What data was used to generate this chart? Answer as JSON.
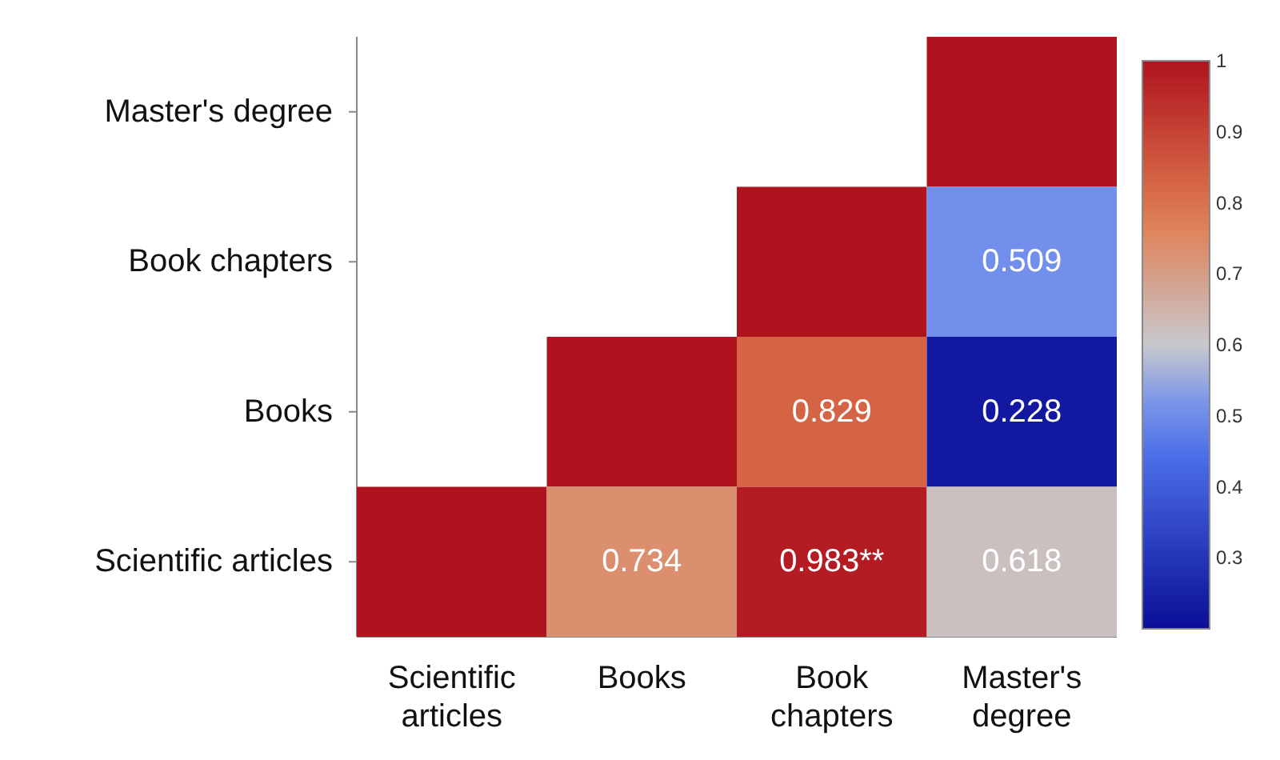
{
  "chart_data": {
    "type": "heatmap",
    "categories": [
      "Scientific articles",
      "Books",
      "Book chapters",
      "Master's degree"
    ],
    "y_categories": [
      "Master's degree",
      "Book chapters",
      "Books",
      "Scientific articles"
    ],
    "cells": [
      [
        null,
        null,
        null,
        1
      ],
      [
        null,
        null,
        1,
        0.509
      ],
      [
        null,
        1,
        0.829,
        0.228
      ],
      [
        1,
        0.734,
        0.983,
        0.618
      ]
    ],
    "cell_labels": [
      [
        null,
        null,
        null,
        null
      ],
      [
        null,
        null,
        null,
        "0.509"
      ],
      [
        null,
        null,
        "0.829",
        "0.228"
      ],
      [
        null,
        "0.734",
        "0.983**",
        "0.618"
      ]
    ],
    "clim": [
      0.2,
      1
    ],
    "cticks": [
      0.3,
      0.4,
      0.5,
      0.6,
      0.7,
      0.8,
      0.9,
      1
    ]
  }
}
